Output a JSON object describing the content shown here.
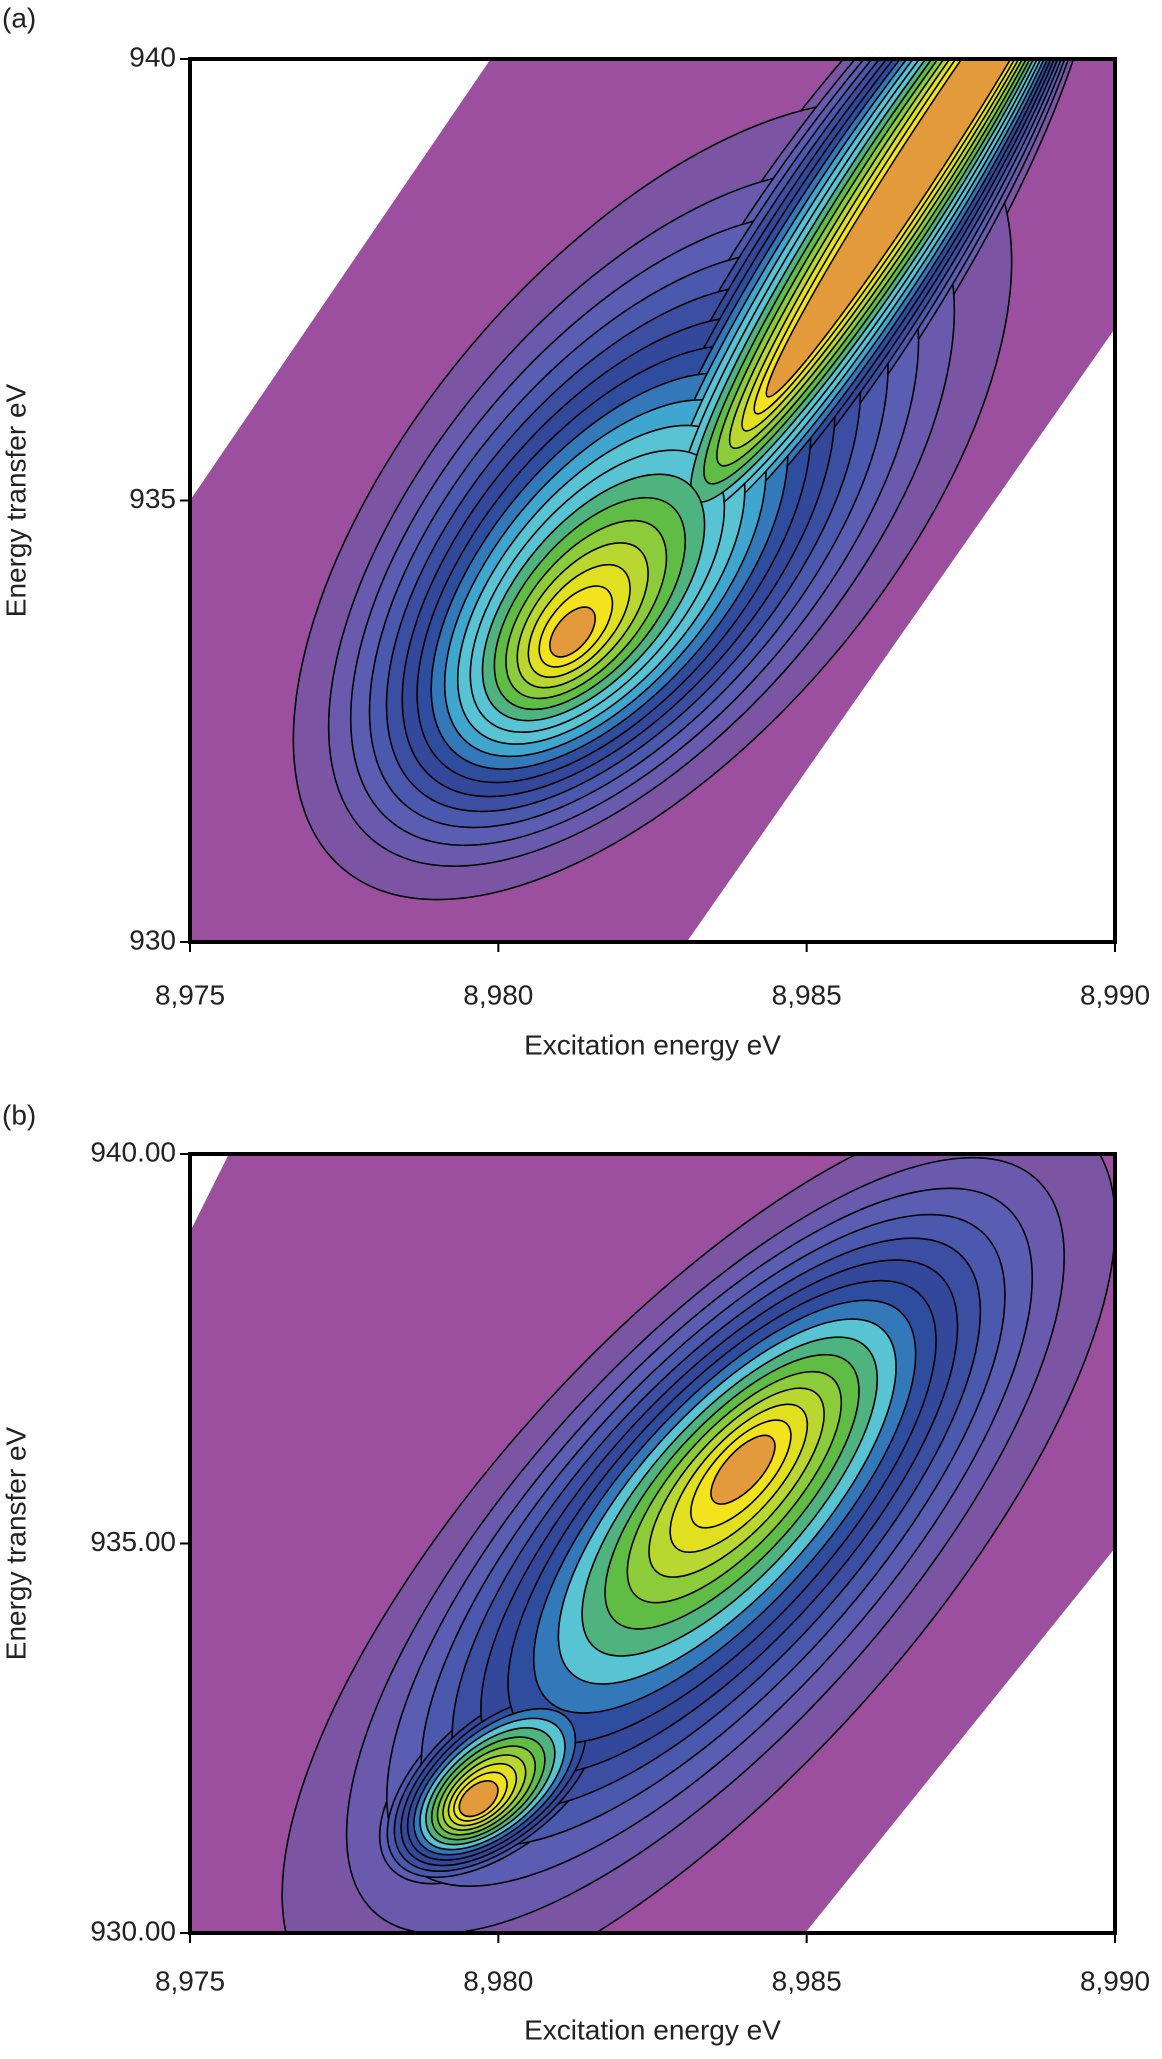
{
  "chart_data": [
    {
      "type": "contour",
      "panel_label": "(a)",
      "xlabel": "Excitation energy eV",
      "ylabel": "Energy transfer eV",
      "xlim": [
        8975,
        8990
      ],
      "xticks": [
        {
          "value": 8975,
          "label": "8,975"
        },
        {
          "value": 8980,
          "label": "8,980"
        },
        {
          "value": 8985,
          "label": "8,985"
        },
        {
          "value": 8990,
          "label": "8,990"
        }
      ],
      "ylim": [
        930,
        940
      ],
      "yticks": [
        930,
        935,
        940
      ]
    },
    {
      "type": "contour",
      "panel_label": "(b)",
      "xlabel": "Excitation energy eV",
      "ylabel": "Energy transfer eV",
      "xlim": [
        8975,
        8990
      ],
      "xticks": [
        {
          "value": 8975,
          "label": "8,975"
        },
        {
          "value": 8980,
          "label": "8,980"
        },
        {
          "value": 8985,
          "label": "8,985"
        },
        {
          "value": 8990,
          "label": "8,990"
        }
      ],
      "ylim": [
        930,
        940
      ],
      "yticks": [
        {
          "value": 930,
          "label": "930.00"
        },
        {
          "value": 935,
          "label": "935.00"
        },
        {
          "value": 940,
          "label": "940.00"
        }
      ]
    }
  ]
}
